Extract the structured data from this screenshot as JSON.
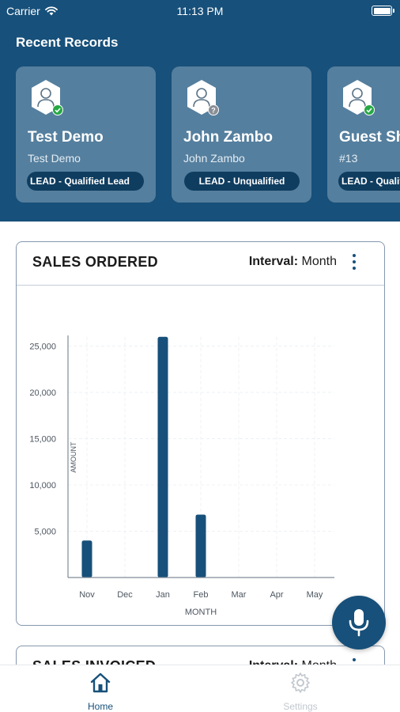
{
  "status_bar": {
    "carrier": "Carrier",
    "time": "11:13 PM"
  },
  "recent_records": {
    "title": "Recent Records",
    "items": [
      {
        "name": "Test Demo",
        "subtitle": "Test Demo",
        "badge": "LEAD - Qualified Lead",
        "status": "verified"
      },
      {
        "name": "John Zambo",
        "subtitle": "John Zambo",
        "badge": "LEAD - Unqualified",
        "status": "unknown"
      },
      {
        "name": "Guest Sh",
        "subtitle": "#13",
        "badge": "LEAD - Qualified Lead",
        "status": "verified"
      }
    ]
  },
  "sales_ordered": {
    "title": "SALES ORDERED",
    "interval_label": "Interval:",
    "interval_value": "Month"
  },
  "sales_invoiced": {
    "title": "SALES INVOICED",
    "interval_label": "Interval:",
    "interval_value": "Month"
  },
  "chart_data": {
    "type": "bar",
    "title": "",
    "xlabel": "MONTH",
    "ylabel": "AMOUNT",
    "categories": [
      "Nov",
      "Dec",
      "Jan",
      "Feb",
      "Mar",
      "Apr",
      "May"
    ],
    "values": [
      4000,
      0,
      26000,
      6800,
      0,
      0,
      0
    ],
    "ylim": [
      0,
      26000
    ],
    "yticks": [
      5000,
      10000,
      15000,
      20000,
      25000
    ],
    "ytick_labels": [
      "5,000",
      "10,000",
      "15,000",
      "20,000",
      "25,000"
    ],
    "grid": true,
    "bar_color": "#17507a"
  },
  "tabs": [
    {
      "label": "Home",
      "active": true
    },
    {
      "label": "Settings",
      "active": false
    }
  ],
  "colors": {
    "brand": "#17507a",
    "badge": "#0f3d60",
    "verified": "#27a844",
    "inactive_tab": "#c2c8cf"
  }
}
